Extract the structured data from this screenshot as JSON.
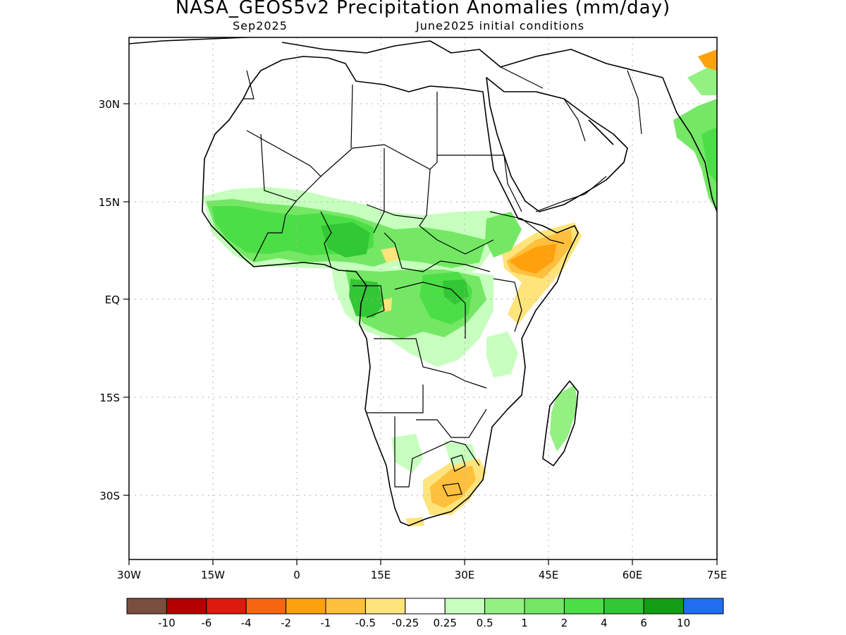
{
  "title": "NASA_GEOS5v2 Precipitation Anomalies (mm/day)",
  "subtitle_left": "Sep2025",
  "subtitle_right": "June2025 initial conditions",
  "axes": {
    "lon_ticks": [
      "30W",
      "15W",
      "0",
      "15E",
      "30E",
      "45E",
      "60E",
      "75E"
    ],
    "lat_ticks": [
      "30N",
      "15N",
      "EQ",
      "15S",
      "30S"
    ]
  },
  "colorbar": {
    "colors": [
      "#7a4e3e",
      "#b50000",
      "#dd1a0d",
      "#f5660f",
      "#ffa10c",
      "#ffc03d",
      "#ffe47c",
      "#ffffff",
      "#c6ffbe",
      "#93f182",
      "#74e864",
      "#4cde47",
      "#32c735",
      "#119d14",
      "#1f6ef3"
    ],
    "labels": [
      "-10",
      "-6",
      "-4",
      "-2",
      "-1",
      "-0.5",
      "-0.25",
      "0.25",
      "0.5",
      "1",
      "2",
      "4",
      "6",
      "10"
    ]
  },
  "colors": {
    "wet_light": "#c6ffbe",
    "wet_mid": "#74e864",
    "wet_strong": "#32c735",
    "dry_light": "#ffe47c",
    "dry_mid": "#ffc03d",
    "dry_strong": "#ffa10c",
    "frame": "#000000",
    "grid": "#b0b0b0"
  }
}
